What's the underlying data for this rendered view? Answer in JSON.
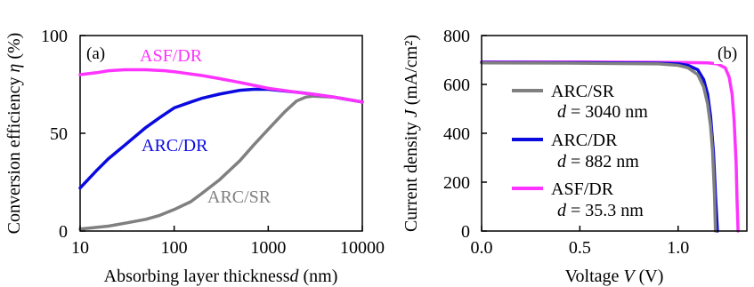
{
  "chart_data": [
    {
      "type": "line",
      "panel_label": "(a)",
      "xlabel": "Absorbing layer thickness",
      "xlabel_var": "d",
      "xlabel_unit": " (nm)",
      "ylabel": "Conversion efficiency ",
      "ylabel_var": "η",
      "ylabel_unit": " (%)",
      "x_scale": "log",
      "xlim": [
        10,
        10000
      ],
      "ylim": [
        0,
        100
      ],
      "xticks": [
        10,
        100,
        1000,
        10000
      ],
      "xtick_labels": [
        "10",
        "100",
        "1000",
        "10000"
      ],
      "yticks": [
        0,
        50,
        100
      ],
      "ytick_labels": [
        "0",
        "50",
        "100"
      ],
      "grid": false,
      "series": [
        {
          "name": "ASF/DR",
          "color": "#ff33ff",
          "x": [
            10,
            15,
            20,
            30,
            50,
            80,
            100,
            200,
            300,
            500,
            1000,
            2000,
            3000,
            5000,
            10000
          ],
          "y": [
            80,
            81,
            82,
            82.5,
            82.5,
            82,
            81.5,
            79.5,
            78,
            76,
            73,
            71,
            70,
            68.5,
            66
          ]
        },
        {
          "name": "ARC/DR",
          "color": "#0a0ae0",
          "x": [
            10,
            15,
            20,
            30,
            50,
            70,
            100,
            150,
            200,
            300,
            500,
            700,
            1000,
            2000,
            3000,
            5000,
            10000
          ],
          "y": [
            22,
            31,
            37,
            44,
            53,
            58,
            63,
            66,
            68,
            70,
            72,
            72.5,
            72.5,
            71,
            70,
            68.5,
            66
          ]
        },
        {
          "name": "ARC/SR",
          "color": "#808080",
          "x": [
            10,
            20,
            30,
            50,
            70,
            100,
            150,
            200,
            300,
            500,
            700,
            1000,
            1500,
            2000,
            2500,
            3000,
            5000,
            10000
          ],
          "y": [
            1,
            2.5,
            4,
            6,
            8,
            11,
            15,
            19.5,
            26,
            36,
            44,
            52,
            61,
            66.5,
            68.5,
            69,
            68.5,
            66
          ]
        }
      ],
      "annotations": [
        {
          "text": "ASF/DR",
          "color": "#ff33ff"
        },
        {
          "text": "ARC/DR",
          "color": "#0a0ae0"
        },
        {
          "text": "ARC/SR",
          "color": "#808080"
        }
      ]
    },
    {
      "type": "line",
      "panel_label": "(b)",
      "xlabel": "Voltage ",
      "xlabel_var": "V",
      "xlabel_unit": " (V)",
      "ylabel": "Current density ",
      "ylabel_var": "J",
      "ylabel_unit": " (mA/cm²)",
      "xlim": [
        0,
        1.35
      ],
      "ylim": [
        0,
        800
      ],
      "xticks": [
        0,
        0.5,
        1.0
      ],
      "xtick_labels": [
        "0.0",
        "0.5",
        "1.0"
      ],
      "yticks": [
        0,
        200,
        400,
        600,
        800
      ],
      "ytick_labels": [
        "0",
        "200",
        "400",
        "600",
        "800"
      ],
      "grid": false,
      "legend_position": "center-left",
      "series": [
        {
          "name": "ARC/SR",
          "sublabel": "d = 3040 nm",
          "sublabel_var": "d",
          "sublabel_rest": " = 3040 nm",
          "color": "#808080",
          "x": [
            0,
            0.5,
            0.9,
            1.0,
            1.05,
            1.1,
            1.13,
            1.15,
            1.165,
            1.175,
            1.185,
            1.19
          ],
          "y": [
            688,
            687,
            684,
            678,
            668,
            640,
            590,
            520,
            430,
            330,
            150,
            0
          ]
        },
        {
          "name": "ARC/DR",
          "sublabel": "d = 882 nm",
          "sublabel_var": "d",
          "sublabel_rest": " = 882 nm",
          "color": "#0a0ae0",
          "x": [
            0,
            0.5,
            0.9,
            1.0,
            1.05,
            1.1,
            1.13,
            1.15,
            1.165,
            1.18,
            1.19,
            1.2
          ],
          "y": [
            690,
            689,
            687,
            684,
            678,
            660,
            620,
            560,
            470,
            320,
            150,
            0
          ]
        },
        {
          "name": "ASF/DR",
          "sublabel": "d = 35.3 nm",
          "sublabel_var": "d",
          "sublabel_rest": " = 35.3 nm",
          "color": "#ff33ff",
          "x": [
            0,
            0.5,
            1.0,
            1.15,
            1.2,
            1.24,
            1.26,
            1.275,
            1.285,
            1.295,
            1.3,
            1.305
          ],
          "y": [
            692,
            692,
            690,
            688,
            684,
            668,
            630,
            560,
            450,
            280,
            120,
            0
          ]
        }
      ]
    }
  ]
}
